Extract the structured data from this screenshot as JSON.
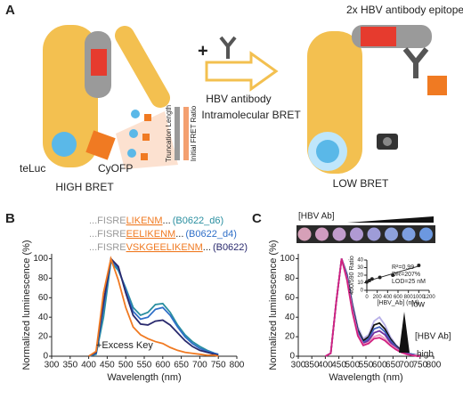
{
  "diagram": {
    "panel_label": "A",
    "epitope": "2x HBV antibody epitope",
    "plus": "+",
    "antibody": "HBV antibody",
    "truncation": "Truncation Length",
    "fret": "Initial FRET Ratio",
    "intramolecular": "Intramolecular BRET",
    "teluc": "teLuc",
    "cyofp": "CyOFP",
    "high": "HIGH BRET",
    "low": "LOW BRET"
  },
  "chart_data": [
    {
      "type": "line",
      "panel_label": "B",
      "x_label": "Wavelength (nm)",
      "y_label": "Normalized luminescence (%)",
      "xlim": [
        300,
        800
      ],
      "xticks": [
        300,
        350,
        400,
        450,
        500,
        550,
        600,
        650,
        700,
        750,
        800
      ],
      "ylim": [
        0,
        105
      ],
      "yticks": [
        0,
        20,
        40,
        60,
        80,
        100
      ],
      "x": [
        400,
        420,
        440,
        460,
        480,
        500,
        520,
        540,
        560,
        580,
        600,
        620,
        640,
        660,
        680,
        700,
        720,
        740,
        750
      ],
      "series": [
        {
          "name": "(B0622_d6)",
          "color": "#2a8fa0",
          "sequence": {
            "prefix": "...FISRE",
            "insert": "LIKENM",
            "suffix": "..."
          },
          "values": [
            0,
            2,
            40,
            97,
            88,
            70,
            50,
            42,
            45,
            53,
            54,
            45,
            32,
            22,
            15,
            10,
            6,
            3,
            2
          ]
        },
        {
          "name": "(B0622_d4)",
          "color": "#2f6fc8",
          "sequence": {
            "prefix": "...FISRE",
            "insert": "EELIKENM",
            "suffix": "..."
          },
          "values": [
            0,
            3,
            50,
            99,
            90,
            68,
            46,
            38,
            40,
            48,
            50,
            42,
            30,
            20,
            13,
            8,
            5,
            3,
            2
          ]
        },
        {
          "name": "(B0622)",
          "color": "#2a2a6e",
          "sequence": {
            "prefix": "...FISRE",
            "insert": "VSKGEELIKENM",
            "suffix": "..."
          },
          "values": [
            0,
            4,
            55,
            100,
            92,
            65,
            42,
            33,
            32,
            36,
            37,
            32,
            24,
            16,
            10,
            6,
            4,
            2,
            1
          ]
        },
        {
          "name": "+Excess Key",
          "color": "#f07a22",
          "values": [
            0,
            5,
            65,
            100,
            78,
            50,
            30,
            22,
            18,
            15,
            13,
            9,
            6,
            4,
            3,
            2,
            1,
            1,
            0
          ]
        }
      ]
    },
    {
      "type": "line",
      "panel_label": "C",
      "x_label": "Wavelength (nm)",
      "y_label": "Normalized luminescence (%)",
      "strip_title": "[HBV Ab]",
      "legend_low": "low",
      "legend_title": "[HBV Ab]",
      "legend_high": "high",
      "xlim": [
        300,
        800
      ],
      "xticks": [
        300,
        350,
        400,
        450,
        500,
        550,
        600,
        650,
        700,
        750,
        800
      ],
      "ylim": [
        0,
        105
      ],
      "yticks": [
        0,
        20,
        40,
        60,
        80,
        100
      ],
      "x": [
        400,
        420,
        440,
        460,
        480,
        500,
        520,
        540,
        560,
        580,
        600,
        620,
        640,
        660,
        680,
        700,
        720,
        740,
        750
      ],
      "series": [
        {
          "color": "#b8b0e8",
          "values": [
            0,
            3,
            55,
            100,
            85,
            55,
            30,
            18,
            22,
            36,
            40,
            32,
            20,
            12,
            7,
            4,
            2,
            1,
            1
          ]
        },
        {
          "color": "#111111",
          "values": [
            0,
            3,
            55,
            100,
            83,
            52,
            27,
            16,
            20,
            32,
            34,
            28,
            18,
            11,
            6,
            3,
            2,
            1,
            1
          ]
        },
        {
          "color": "#4060c0",
          "values": [
            0,
            3,
            55,
            100,
            82,
            50,
            25,
            14,
            18,
            28,
            30,
            25,
            16,
            10,
            5,
            3,
            2,
            1,
            0
          ]
        },
        {
          "color": "#7030a0",
          "values": [
            0,
            3,
            55,
            100,
            80,
            48,
            23,
            13,
            16,
            24,
            26,
            22,
            14,
            9,
            5,
            3,
            1,
            1,
            0
          ]
        },
        {
          "color": "#f0a0c0",
          "values": [
            0,
            3,
            55,
            100,
            79,
            47,
            22,
            12,
            14,
            20,
            22,
            18,
            12,
            8,
            4,
            2,
            1,
            1,
            0
          ]
        },
        {
          "color": "#d02080",
          "values": [
            0,
            3,
            55,
            100,
            78,
            45,
            21,
            11,
            13,
            18,
            19,
            16,
            11,
            7,
            4,
            2,
            1,
            0,
            0
          ]
        }
      ]
    },
    {
      "type": "scatter",
      "x_label": "[HBV_Ab] (nM)",
      "y_label": "460/590 Ratio",
      "annotations": [
        "R²=0.99",
        "DR=207%",
        "LOD=25 nM"
      ],
      "xlim": [
        0,
        1200
      ],
      "xticks": [
        0,
        200,
        400,
        600,
        800,
        1000,
        1200
      ],
      "ylim": [
        0,
        40
      ],
      "yticks": [
        0,
        10,
        20,
        30,
        40
      ],
      "x": [
        0,
        50,
        100,
        250,
        500,
        1000
      ],
      "values": [
        11,
        13,
        15,
        17,
        20,
        33
      ],
      "color": "#222222",
      "fit": {
        "x": [
          0,
          1000
        ],
        "values": [
          12,
          32
        ]
      }
    }
  ]
}
